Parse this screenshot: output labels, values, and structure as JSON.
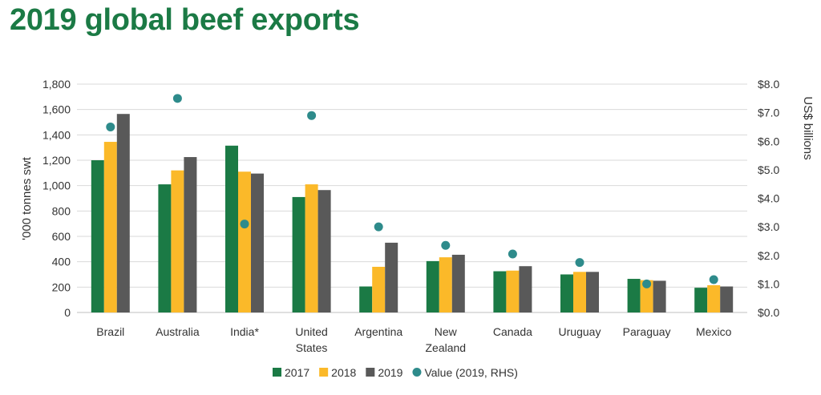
{
  "title": "2019 global beef exports",
  "chart_data": {
    "type": "bar",
    "title": "2019 global beef exports",
    "categories": [
      [
        "Brazil"
      ],
      [
        "Australia"
      ],
      [
        "India*"
      ],
      [
        "United",
        "States"
      ],
      [
        "Argentina"
      ],
      [
        "New",
        "Zealand"
      ],
      [
        "Canada"
      ],
      [
        "Uruguay"
      ],
      [
        "Paraguay"
      ],
      [
        "Mexico"
      ]
    ],
    "series": [
      {
        "name": "2017",
        "color": "#1b7a45",
        "values": [
          1200,
          1010,
          1315,
          910,
          205,
          405,
          325,
          300,
          265,
          195
        ]
      },
      {
        "name": "2018",
        "color": "#fbb929",
        "values": [
          1345,
          1120,
          1110,
          1010,
          360,
          435,
          330,
          320,
          255,
          215
        ]
      },
      {
        "name": "2019",
        "color": "#595959",
        "values": [
          1565,
          1225,
          1095,
          965,
          550,
          455,
          365,
          320,
          250,
          205
        ]
      }
    ],
    "scatter_series": {
      "name": "Value (2019, RHS)",
      "color": "#2e8b8b",
      "values": [
        6.5,
        7.5,
        3.1,
        6.9,
        3.0,
        2.35,
        2.05,
        1.75,
        1.0,
        1.15
      ]
    },
    "ylabel": "'000 tonnes swt",
    "ylabel_right": "US$ billions",
    "ylim": [
      0,
      1800
    ],
    "ylim_right": [
      0,
      8
    ],
    "yticks": [
      "0",
      "200",
      "400",
      "600",
      "800",
      "1,000",
      "1,200",
      "1,400",
      "1,600",
      "1,800"
    ],
    "yticks_right": [
      "$0.0",
      "$1.0",
      "$2.0",
      "$3.0",
      "$4.0",
      "$5.0",
      "$6.0",
      "$7.0",
      "$8.0"
    ],
    "grid": true,
    "legend_position": "bottom"
  }
}
